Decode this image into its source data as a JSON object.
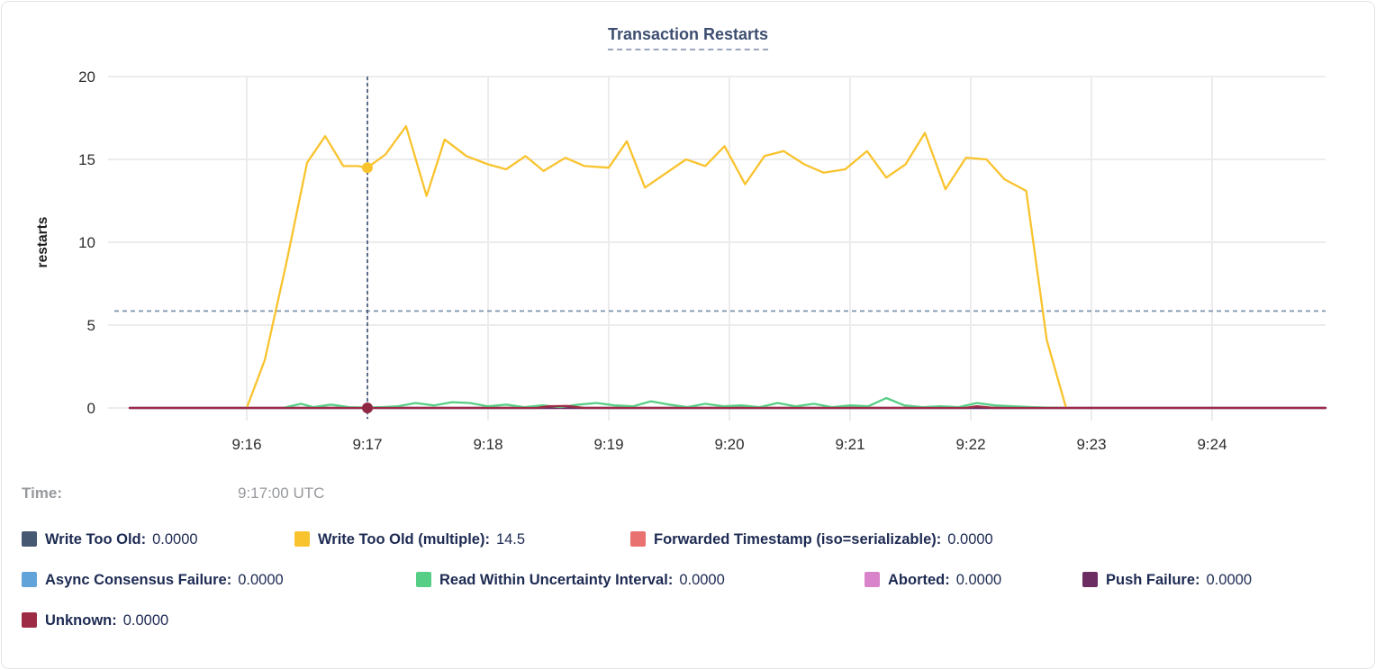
{
  "card": {
    "title": "Transaction Restarts"
  },
  "tooltip": {
    "time_label": "Time:",
    "time_value": "9:17:00 UTC"
  },
  "chart_data": {
    "type": "line",
    "title": "Transaction Restarts",
    "xlabel": "",
    "ylabel": "restarts",
    "ylim": [
      0,
      20
    ],
    "yticks": [
      0,
      5,
      10,
      15,
      20
    ],
    "xticks": [
      {
        "t": 16,
        "label": "9:16"
      },
      {
        "t": 17,
        "label": "9:17"
      },
      {
        "t": 18,
        "label": "9:18"
      },
      {
        "t": 19,
        "label": "9:19"
      },
      {
        "t": 20,
        "label": "9:20"
      },
      {
        "t": 21,
        "label": "9:21"
      },
      {
        "t": 22,
        "label": "9:22"
      },
      {
        "t": 23,
        "label": "9:23"
      },
      {
        "t": 24,
        "label": "9:24"
      }
    ],
    "x_domain_minutes_after_9am": [
      15.03,
      24.94
    ],
    "grid": true,
    "legend_position": "bottom",
    "crosshair": {
      "t": 17,
      "time_value": "9:17:00 UTC",
      "hline_value": 5.85,
      "vline_color": "#44597b",
      "hline_color": "#7e95ae",
      "dots": [
        {
          "series": "Write Too Old (multiple)",
          "value": 14.5,
          "color": "#f9c32e"
        },
        {
          "series": "Unknown",
          "value": 0,
          "color": "#8e2742"
        }
      ]
    },
    "series": [
      {
        "label": "Write Too Old:",
        "hover_value": "0.0000",
        "color": "#475872",
        "points": [
          [
            15.03,
            0
          ],
          [
            24.94,
            0
          ]
        ]
      },
      {
        "label": "Forwarded Timestamp (iso=serializable):",
        "hover_value": "0.0000",
        "color": "#e9716f",
        "points": [
          [
            15.03,
            0
          ],
          [
            24.94,
            0
          ]
        ]
      },
      {
        "label": "Async Consensus Failure:",
        "hover_value": "0.0000",
        "color": "#62a4d9",
        "points": [
          [
            15.03,
            0
          ],
          [
            24.94,
            0
          ]
        ]
      },
      {
        "label": "Aborted:",
        "hover_value": "0.0000",
        "color": "#d983cb",
        "points": [
          [
            15.03,
            0
          ],
          [
            24.94,
            0
          ]
        ]
      },
      {
        "label": "Push Failure:",
        "hover_value": "0.0000",
        "color": "#6c2d63",
        "points": [
          [
            15.03,
            0
          ],
          [
            24.94,
            0
          ]
        ]
      },
      {
        "label": "Read Within Uncertainty Interval:",
        "hover_value": "0.0000",
        "color": "#57ce85",
        "points": [
          [
            16.3,
            0
          ],
          [
            16.45,
            0.25
          ],
          [
            16.55,
            0.05
          ],
          [
            16.7,
            0.2
          ],
          [
            16.85,
            0.05
          ],
          [
            17.0,
            0.02
          ],
          [
            17.12,
            0.05
          ],
          [
            17.25,
            0.1
          ],
          [
            17.4,
            0.3
          ],
          [
            17.55,
            0.15
          ],
          [
            17.7,
            0.35
          ],
          [
            17.85,
            0.3
          ],
          [
            18.0,
            0.1
          ],
          [
            18.15,
            0.2
          ],
          [
            18.3,
            0.05
          ],
          [
            18.45,
            0.15
          ],
          [
            18.6,
            0.05
          ],
          [
            18.75,
            0.2
          ],
          [
            18.9,
            0.3
          ],
          [
            19.05,
            0.15
          ],
          [
            19.2,
            0.1
          ],
          [
            19.35,
            0.4
          ],
          [
            19.5,
            0.2
          ],
          [
            19.65,
            0.05
          ],
          [
            19.8,
            0.25
          ],
          [
            19.95,
            0.1
          ],
          [
            20.1,
            0.15
          ],
          [
            20.25,
            0.05
          ],
          [
            20.4,
            0.3
          ],
          [
            20.55,
            0.1
          ],
          [
            20.7,
            0.25
          ],
          [
            20.85,
            0.05
          ],
          [
            21.0,
            0.15
          ],
          [
            21.15,
            0.1
          ],
          [
            21.3,
            0.6
          ],
          [
            21.45,
            0.15
          ],
          [
            21.6,
            0.05
          ],
          [
            21.75,
            0.1
          ],
          [
            21.9,
            0.05
          ],
          [
            22.05,
            0.3
          ],
          [
            22.2,
            0.15
          ],
          [
            22.35,
            0.1
          ],
          [
            22.5,
            0.05
          ],
          [
            22.75,
            0
          ]
        ]
      },
      {
        "label": "Write Too Old (multiple):",
        "hover_value": "14.5",
        "color": "#f9c32e",
        "points": [
          [
            16.0,
            0
          ],
          [
            16.15,
            2.9
          ],
          [
            16.33,
            8.8
          ],
          [
            16.5,
            14.8
          ],
          [
            16.65,
            16.4
          ],
          [
            16.8,
            14.6
          ],
          [
            16.92,
            14.6
          ],
          [
            17.0,
            14.5
          ],
          [
            17.15,
            15.3
          ],
          [
            17.32,
            17.0
          ],
          [
            17.49,
            12.8
          ],
          [
            17.64,
            16.2
          ],
          [
            17.82,
            15.2
          ],
          [
            18.0,
            14.7
          ],
          [
            18.15,
            14.4
          ],
          [
            18.31,
            15.2
          ],
          [
            18.46,
            14.3
          ],
          [
            18.64,
            15.1
          ],
          [
            18.8,
            14.6
          ],
          [
            19.0,
            14.5
          ],
          [
            19.15,
            16.1
          ],
          [
            19.3,
            13.3
          ],
          [
            19.64,
            15.0
          ],
          [
            19.8,
            14.6
          ],
          [
            19.96,
            15.8
          ],
          [
            20.13,
            13.5
          ],
          [
            20.29,
            15.2
          ],
          [
            20.45,
            15.5
          ],
          [
            20.62,
            14.7
          ],
          [
            20.78,
            14.2
          ],
          [
            20.96,
            14.4
          ],
          [
            21.14,
            15.5
          ],
          [
            21.3,
            13.9
          ],
          [
            21.46,
            14.7
          ],
          [
            21.62,
            16.6
          ],
          [
            21.79,
            13.2
          ],
          [
            21.96,
            15.1
          ],
          [
            22.13,
            15.0
          ],
          [
            22.28,
            13.8
          ],
          [
            22.46,
            13.1
          ],
          [
            22.63,
            4.1
          ],
          [
            22.79,
            0
          ]
        ]
      },
      {
        "label": "Unknown:",
        "hover_value": "0.0000",
        "color": "#9d2b45",
        "points": [
          [
            15.03,
            0
          ],
          [
            18.4,
            0
          ],
          [
            18.5,
            0.1
          ],
          [
            18.65,
            0.12
          ],
          [
            18.8,
            0
          ],
          [
            21.95,
            0
          ],
          [
            22.05,
            0.1
          ],
          [
            22.2,
            0
          ],
          [
            24.94,
            0
          ]
        ]
      }
    ]
  }
}
